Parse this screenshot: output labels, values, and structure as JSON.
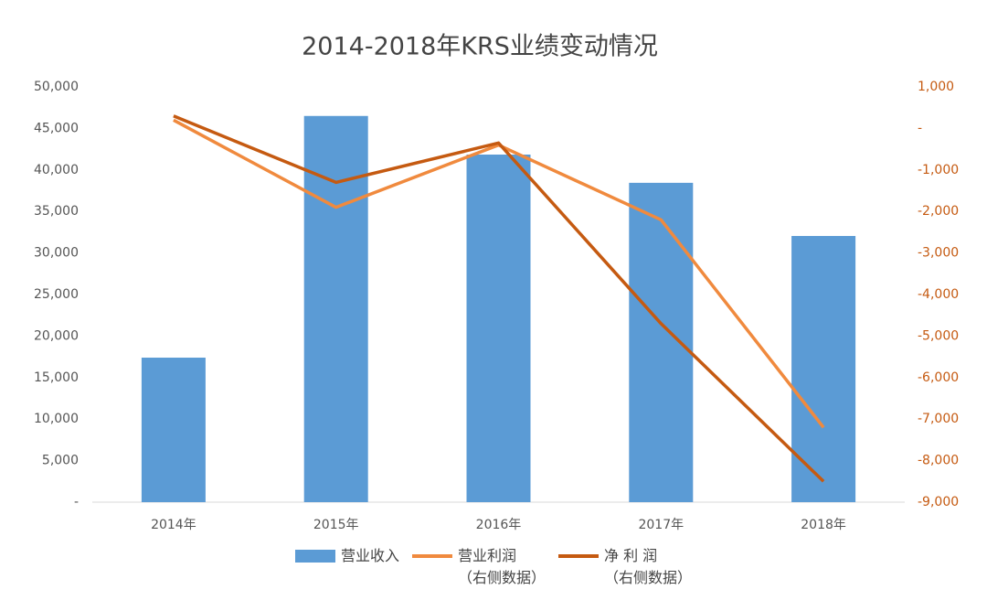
{
  "chart_data": {
    "type": "bar_line",
    "title": "2014-2018年KRS业绩变动情况",
    "categories": [
      "2014年",
      "2015年",
      "2016年",
      "2017年",
      "2018年"
    ],
    "series": [
      {
        "name": "营业收入",
        "type": "bar",
        "color": "#5b9bd5",
        "values": [
          17400,
          46500,
          41850,
          38450,
          32050
        ]
      },
      {
        "name": "营业利润\n（右侧数据）",
        "type": "line",
        "axis": "y2",
        "color": "#f08a3e",
        "values": [
          200,
          -1900,
          -400,
          -2200,
          -7200
        ]
      },
      {
        "name": "净 利 润\n（右侧数据）",
        "type": "line",
        "axis": "y2",
        "color": "#c55a11",
        "values": [
          300,
          -1300,
          -350,
          -4700,
          -8500
        ]
      }
    ],
    "ylim": [
      0,
      50000
    ],
    "yticks": [
      {
        "value": 0,
        "label": "-"
      },
      {
        "value": 5000,
        "label": "5,000"
      },
      {
        "value": 10000,
        "label": "10,000"
      },
      {
        "value": 15000,
        "label": "15,000"
      },
      {
        "value": 20000,
        "label": "20,000"
      },
      {
        "value": 25000,
        "label": "25,000"
      },
      {
        "value": 30000,
        "label": "30,000"
      },
      {
        "value": 35000,
        "label": "35,000"
      },
      {
        "value": 40000,
        "label": "40,000"
      },
      {
        "value": 45000,
        "label": "45,000"
      },
      {
        "value": 50000,
        "label": "50,000"
      }
    ],
    "y2lim": [
      -9000,
      1000
    ],
    "y2ticks": [
      {
        "value": 1000,
        "label": "1,000"
      },
      {
        "value": 0,
        "label": "-"
      },
      {
        "value": -1000,
        "label": "-1,000"
      },
      {
        "value": -2000,
        "label": "-2,000"
      },
      {
        "value": -3000,
        "label": "-3,000"
      },
      {
        "value": -4000,
        "label": "-4,000"
      },
      {
        "value": -5000,
        "label": "-5,000"
      },
      {
        "value": -6000,
        "label": "-6,000"
      },
      {
        "value": -7000,
        "label": "-7,000"
      },
      {
        "value": -8000,
        "label": "-8,000"
      },
      {
        "value": -9000,
        "label": "-9,000"
      }
    ],
    "legend": "bottom"
  }
}
